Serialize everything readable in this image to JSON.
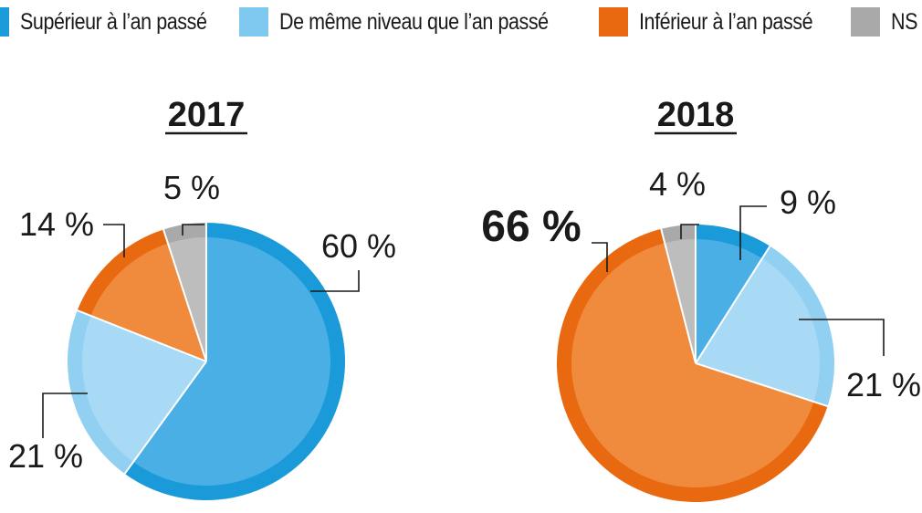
{
  "legend": [
    {
      "label": "Supérieur à l’an passé",
      "color": "#1a9ad9"
    },
    {
      "label": "De même niveau que l’an passé",
      "color": "#7fc8f0"
    },
    {
      "label": "Inférieur à l’an passé",
      "color": "#e8690f"
    },
    {
      "label": "NS",
      "color": "#a9a9a9"
    }
  ],
  "chart_data": [
    {
      "type": "pie",
      "title": "2017",
      "categories": [
        "Supérieur à l’an passé",
        "De même niveau que l’an passé",
        "Inférieur à l’an passé",
        "NS"
      ],
      "values": [
        60,
        21,
        14,
        5
      ],
      "labels": [
        "60 %",
        "21 %",
        "14 %",
        "5 %"
      ]
    },
    {
      "type": "pie",
      "title": "2018",
      "categories": [
        "Supérieur à l’an passé",
        "De même niveau que l’an passé",
        "Inférieur à l’an passé",
        "NS"
      ],
      "values": [
        9,
        21,
        66,
        4
      ],
      "labels": [
        "9 %",
        "21 %",
        "66 %",
        "4 %"
      ]
    }
  ],
  "colors": {
    "ring": [
      "#1a9ad9",
      "#92d0f2",
      "#e8690f",
      "#a9a9a9"
    ],
    "fill": [
      "#4aafe4",
      "#a8daf6",
      "#f08a3c",
      "#bdbdbd"
    ]
  }
}
